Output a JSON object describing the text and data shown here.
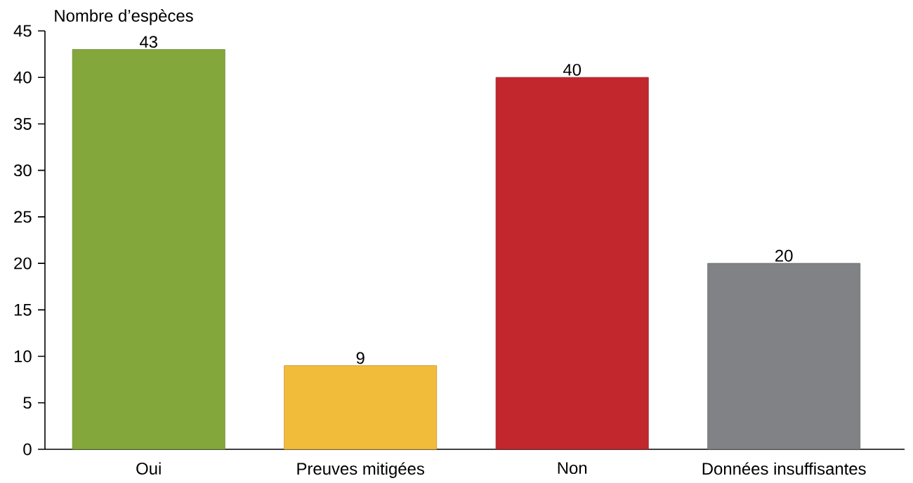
{
  "chart_data": {
    "type": "bar",
    "ylabel": "Nombre d’espèces",
    "categories": [
      "Oui",
      "Preuves mitigées",
      "Non",
      "Données insuffisantes"
    ],
    "values": [
      43,
      9,
      40,
      20
    ],
    "colors": [
      "#84a73c",
      "#f2bc3b",
      "#c1272d",
      "#808285"
    ],
    "ylim": [
      0,
      45
    ],
    "yticks": [
      0,
      5,
      10,
      15,
      20,
      25,
      30,
      35,
      40,
      45
    ],
    "data_labels": true
  }
}
